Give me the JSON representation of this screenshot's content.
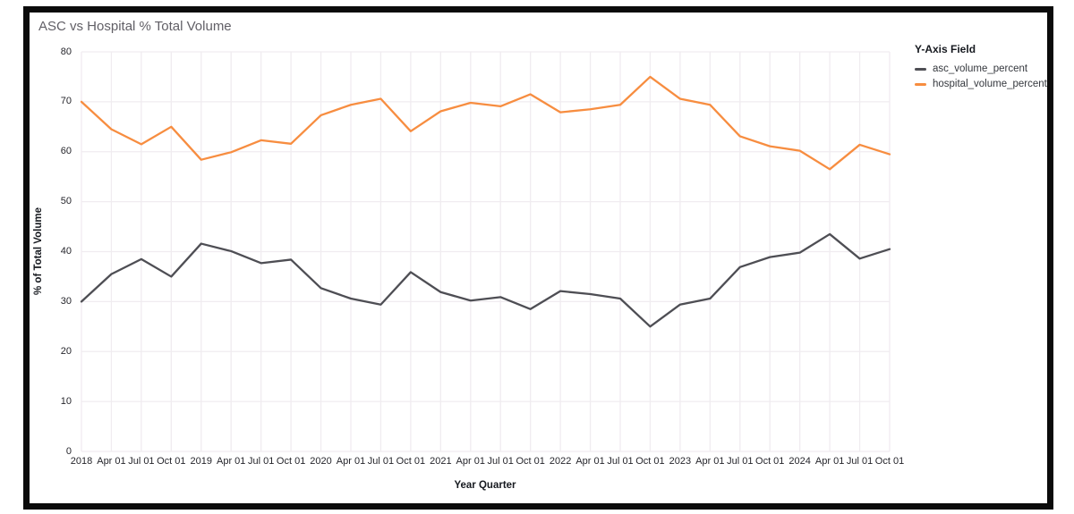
{
  "title": "ASC vs Hospital % Total Volume",
  "legend": {
    "title": "Y-Axis Field",
    "items": [
      {
        "label": "asc_volume_percent",
        "color": "#4e4e54"
      },
      {
        "label": "hospital_volume_percent",
        "color": "#f78d40"
      }
    ]
  },
  "colors": {
    "asc_line": "#4e4e54",
    "hospital_line": "#f78d40",
    "gridline": "#f0ecf0",
    "tick_text": "#26262c",
    "title_text": "#615f66",
    "frame_border": "#0b0b0b"
  },
  "chart_data": {
    "type": "line",
    "title": "ASC vs Hospital % Total Volume",
    "xlabel": "Year Quarter",
    "ylabel": "% of Total Volume",
    "ylim": [
      0,
      80
    ],
    "yticks": [
      0,
      10,
      20,
      30,
      40,
      50,
      60,
      70,
      80
    ],
    "grid": true,
    "legend_position": "right",
    "legend_title": "Y-Axis Field",
    "categories": [
      "2018",
      "Apr 01",
      "Jul 01",
      "Oct 01",
      "2019",
      "Apr 01",
      "Jul 01",
      "Oct 01",
      "2020",
      "Apr 01",
      "Jul 01",
      "Oct 01",
      "2021",
      "Apr 01",
      "Jul 01",
      "Oct 01",
      "2022",
      "Apr 01",
      "Jul 01",
      "Oct 01",
      "2023",
      "Apr 01",
      "Jul 01",
      "Oct 01",
      "2024",
      "Apr 01",
      "Jul 01",
      "Oct 01"
    ],
    "series": [
      {
        "name": "asc_volume_percent",
        "color": "#4e4e54",
        "values": [
          30.0,
          35.5,
          38.5,
          35.0,
          41.6,
          40.1,
          37.7,
          38.4,
          32.7,
          30.6,
          29.4,
          35.9,
          31.9,
          30.2,
          30.9,
          28.5,
          32.1,
          31.5,
          30.6,
          25.0,
          29.4,
          30.6,
          36.9,
          38.9,
          39.8,
          43.5,
          38.6,
          40.5
        ]
      },
      {
        "name": "hospital_volume_percent",
        "color": "#f78d40",
        "values": [
          70.0,
          64.5,
          61.5,
          65.0,
          58.4,
          59.9,
          62.3,
          61.6,
          67.3,
          69.4,
          70.6,
          64.1,
          68.1,
          69.8,
          69.1,
          71.5,
          67.9,
          68.5,
          69.4,
          75.0,
          70.6,
          69.4,
          63.1,
          61.1,
          60.2,
          56.5,
          61.4,
          59.5
        ]
      }
    ]
  }
}
